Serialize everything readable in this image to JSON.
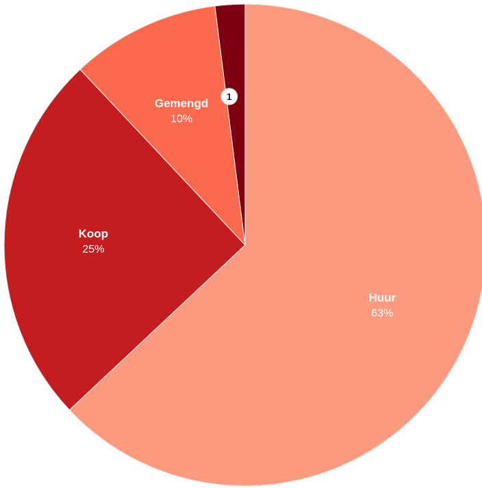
{
  "chart_data": {
    "type": "pie",
    "title": "",
    "slices": [
      {
        "label": "Huur",
        "value_label": "63%",
        "value": 63,
        "color": "#fb9a7f"
      },
      {
        "label": "Koop",
        "value_label": "25%",
        "value": 25,
        "color": "#c41c1f"
      },
      {
        "label": "Gemengd",
        "value_label": "10%",
        "value": 10,
        "color": "#fb6a4e"
      },
      {
        "label": "",
        "value_label": "",
        "marker": "1",
        "value": 2,
        "color": "#7e0010"
      }
    ]
  }
}
